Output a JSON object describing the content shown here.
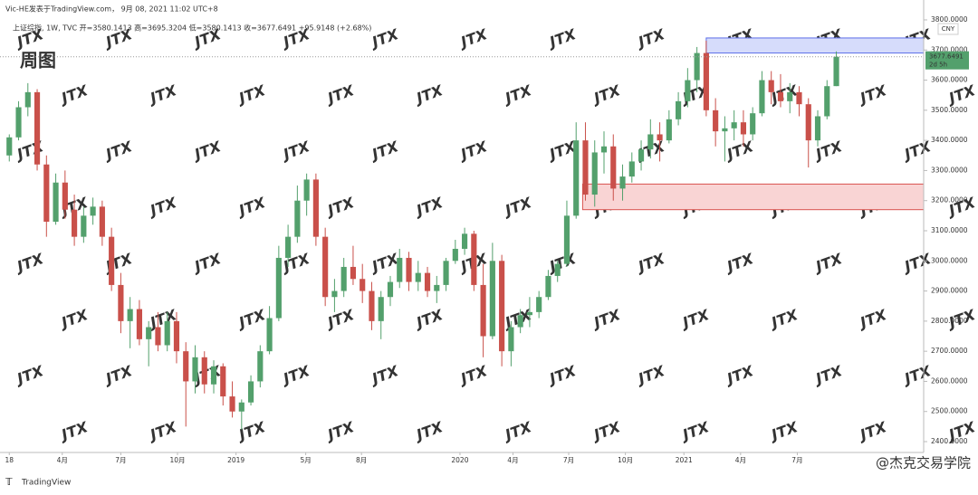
{
  "header": {
    "publisher": "Vic-HE发表于TradingView.com， 9月 08, 2021 11:02 UTC+8",
    "symbol_line": "上证综指, 1W, TVC  开=3580.1413  高=3695.3204  低=3580.1413  收=3677.6491  +95.9148 (+2.68%)"
  },
  "footer": {
    "logo": "TradingView",
    "watermark": "@杰克交易学院"
  },
  "chart_data": {
    "type": "candlestick",
    "title": "周图",
    "currency": "CNY",
    "countdown": "2d 5h",
    "background_mark": "JTX",
    "up_color": "#53a06c",
    "down_color": "#c9504a",
    "ylim": [
      2364,
      3866
    ],
    "yticks": [
      {
        "value": 2400,
        "label": "2400.0000"
      },
      {
        "value": 2500,
        "label": "2500.0000"
      },
      {
        "value": 2600,
        "label": "2600.0000"
      },
      {
        "value": 2700,
        "label": "2700.0000"
      },
      {
        "value": 2800,
        "label": "2800.0000"
      },
      {
        "value": 2900,
        "label": "2900.0000"
      },
      {
        "value": 3000,
        "label": "3000.0000"
      },
      {
        "value": 3100,
        "label": "3100.0000"
      },
      {
        "value": 3200,
        "label": "3200.0000"
      },
      {
        "value": 3300,
        "label": "3300.0000"
      },
      {
        "value": 3400,
        "label": "3400.0000"
      },
      {
        "value": 3500,
        "label": "3500.0000"
      },
      {
        "value": 3600,
        "label": "3600.0000"
      },
      {
        "value": 3700,
        "label": "3700.0000"
      },
      {
        "value": 3800,
        "label": "3800.0000"
      }
    ],
    "xlim": [
      -1,
      98.4
    ],
    "xticks": [
      {
        "value": 0,
        "label": "18"
      },
      {
        "value": 5.7,
        "label": "4月"
      },
      {
        "value": 12,
        "label": "7月"
      },
      {
        "value": 18.1,
        "label": "10月"
      },
      {
        "value": 24.4,
        "label": "2019"
      },
      {
        "value": 31.9,
        "label": "5月"
      },
      {
        "value": 37.9,
        "label": "8月"
      },
      {
        "value": 48.5,
        "label": "2020"
      },
      {
        "value": 54.2,
        "label": "4月"
      },
      {
        "value": 60.2,
        "label": "7月"
      },
      {
        "value": 66.3,
        "label": "10月"
      },
      {
        "value": 72.6,
        "label": "2021"
      },
      {
        "value": 78.7,
        "label": "4月"
      },
      {
        "value": 84.8,
        "label": "7月"
      }
    ],
    "zones": [
      {
        "start": 75,
        "low": 3690,
        "high": 3740,
        "fill": "#d6dcfb",
        "stroke": "#5b6ee8"
      },
      {
        "start": 61.7,
        "low": 3170,
        "high": 3255,
        "fill": "#f9d4d4",
        "stroke": "#d9534f"
      }
    ],
    "ohlc": [
      [
        3350,
        3420,
        3330,
        3410
      ],
      [
        3410,
        3530,
        3400,
        3510
      ],
      [
        3510,
        3590,
        3480,
        3560
      ],
      [
        3560,
        3570,
        3300,
        3320
      ],
      [
        3320,
        3350,
        3080,
        3130
      ],
      [
        3130,
        3290,
        3120,
        3260
      ],
      [
        3260,
        3300,
        3140,
        3170
      ],
      [
        3170,
        3220,
        3050,
        3080
      ],
      [
        3080,
        3180,
        3060,
        3150
      ],
      [
        3150,
        3210,
        3120,
        3180
      ],
      [
        3180,
        3200,
        3050,
        3080
      ],
      [
        3080,
        3110,
        2900,
        2920
      ],
      [
        2920,
        2960,
        2760,
        2800
      ],
      [
        2800,
        2880,
        2710,
        2840
      ],
      [
        2840,
        2870,
        2720,
        2740
      ],
      [
        2740,
        2800,
        2650,
        2780
      ],
      [
        2780,
        2830,
        2700,
        2720
      ],
      [
        2720,
        2830,
        2700,
        2800
      ],
      [
        2800,
        2830,
        2660,
        2700
      ],
      [
        2700,
        2730,
        2450,
        2600
      ],
      [
        2600,
        2720,
        2560,
        2680
      ],
      [
        2680,
        2700,
        2560,
        2590
      ],
      [
        2590,
        2670,
        2560,
        2650
      ],
      [
        2650,
        2660,
        2520,
        2550
      ],
      [
        2550,
        2600,
        2480,
        2500
      ],
      [
        2500,
        2540,
        2440,
        2530
      ],
      [
        2530,
        2620,
        2520,
        2600
      ],
      [
        2600,
        2720,
        2580,
        2700
      ],
      [
        2700,
        2850,
        2690,
        2810
      ],
      [
        2810,
        3050,
        2800,
        3010
      ],
      [
        3010,
        3120,
        2980,
        3080
      ],
      [
        3080,
        3250,
        3060,
        3200
      ],
      [
        3200,
        3290,
        3150,
        3270
      ],
      [
        3270,
        3290,
        3050,
        3080
      ],
      [
        3080,
        3110,
        2850,
        2880
      ],
      [
        2880,
        2940,
        2830,
        2900
      ],
      [
        2900,
        3010,
        2880,
        2980
      ],
      [
        2980,
        3050,
        2920,
        2940
      ],
      [
        2940,
        2990,
        2860,
        2900
      ],
      [
        2900,
        2930,
        2770,
        2800
      ],
      [
        2800,
        2900,
        2740,
        2880
      ],
      [
        2880,
        2950,
        2850,
        2930
      ],
      [
        2930,
        3040,
        2910,
        3010
      ],
      [
        3010,
        3030,
        2900,
        2930
      ],
      [
        2930,
        3000,
        2900,
        2960
      ],
      [
        2960,
        2980,
        2880,
        2900
      ],
      [
        2900,
        2950,
        2860,
        2920
      ],
      [
        2920,
        3010,
        2900,
        3000
      ],
      [
        3000,
        3070,
        2990,
        3040
      ],
      [
        3040,
        3110,
        3020,
        3090
      ],
      [
        3090,
        3100,
        2900,
        2920
      ],
      [
        2920,
        2990,
        2680,
        2750
      ],
      [
        2750,
        3060,
        2740,
        3000
      ],
      [
        3000,
        3020,
        2650,
        2700
      ],
      [
        2700,
        2800,
        2650,
        2780
      ],
      [
        2780,
        2840,
        2760,
        2820
      ],
      [
        2820,
        2880,
        2780,
        2830
      ],
      [
        2830,
        2900,
        2810,
        2880
      ],
      [
        2880,
        2970,
        2870,
        2950
      ],
      [
        2950,
        3000,
        2930,
        2990
      ],
      [
        2990,
        3200,
        2980,
        3150
      ],
      [
        3150,
        3460,
        3140,
        3400
      ],
      [
        3400,
        3460,
        3200,
        3220
      ],
      [
        3220,
        3400,
        3180,
        3360
      ],
      [
        3360,
        3430,
        3290,
        3380
      ],
      [
        3380,
        3420,
        3200,
        3240
      ],
      [
        3240,
        3320,
        3200,
        3280
      ],
      [
        3280,
        3360,
        3260,
        3330
      ],
      [
        3330,
        3400,
        3300,
        3370
      ],
      [
        3370,
        3470,
        3340,
        3420
      ],
      [
        3420,
        3460,
        3330,
        3400
      ],
      [
        3400,
        3500,
        3390,
        3470
      ],
      [
        3470,
        3560,
        3450,
        3530
      ],
      [
        3530,
        3640,
        3510,
        3600
      ],
      [
        3600,
        3710,
        3560,
        3690
      ],
      [
        3690,
        3731,
        3480,
        3500
      ],
      [
        3500,
        3540,
        3380,
        3430
      ],
      [
        3430,
        3480,
        3330,
        3440
      ],
      [
        3440,
        3500,
        3400,
        3460
      ],
      [
        3460,
        3500,
        3380,
        3420
      ],
      [
        3420,
        3510,
        3400,
        3490
      ],
      [
        3490,
        3630,
        3480,
        3600
      ],
      [
        3600,
        3630,
        3520,
        3560
      ],
      [
        3560,
        3620,
        3510,
        3530
      ],
      [
        3530,
        3590,
        3490,
        3560
      ],
      [
        3560,
        3580,
        3480,
        3520
      ],
      [
        3520,
        3540,
        3310,
        3400
      ],
      [
        3400,
        3500,
        3380,
        3480
      ],
      [
        3480,
        3600,
        3470,
        3580
      ],
      [
        3580.1413,
        3695.3204,
        3580.1413,
        3677.6491
      ]
    ]
  }
}
